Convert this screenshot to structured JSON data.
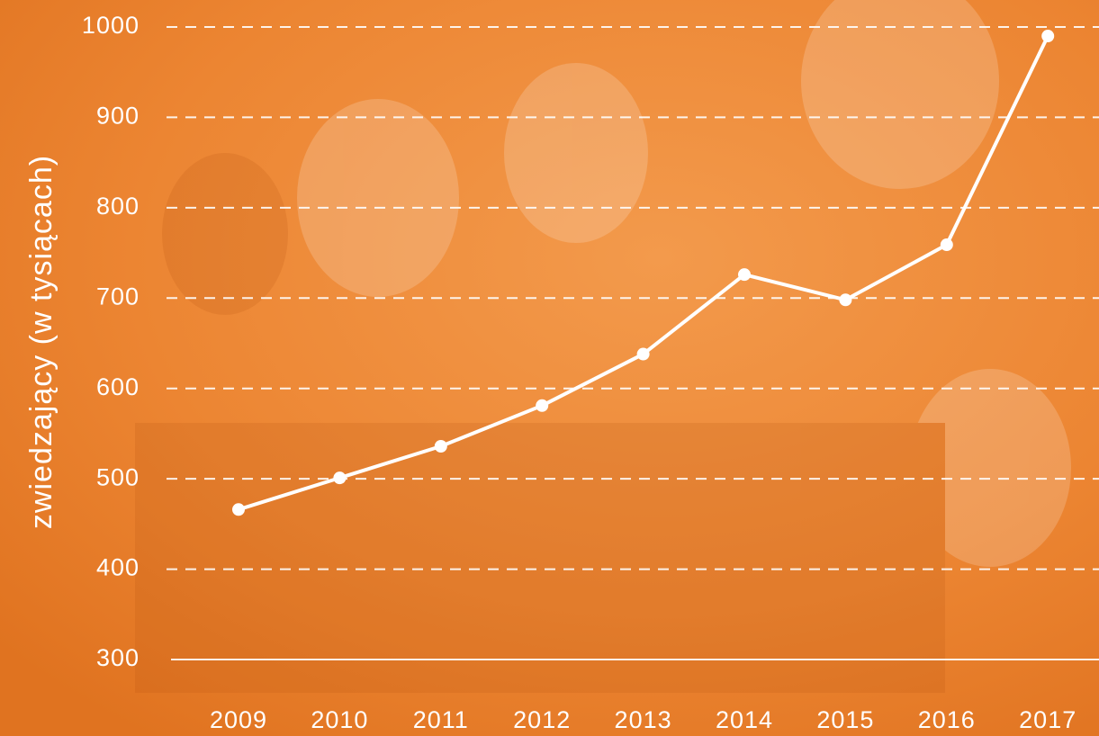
{
  "chart_data": {
    "type": "line",
    "y_axis_label": "zwiedzający (w tysiącach)",
    "categories": [
      "2009",
      "2010",
      "2011",
      "2012",
      "2013",
      "2014",
      "2015",
      "2016",
      "2017"
    ],
    "series": [
      {
        "name": "zwiedzający",
        "color": "#ffffff",
        "values": [
          466,
          501,
          536,
          581,
          638,
          726,
          698,
          759,
          990
        ]
      }
    ],
    "ylim": [
      300,
      1000
    ],
    "yticks": [
      300,
      400,
      500,
      600,
      700,
      800,
      900,
      1000
    ],
    "grid": true
  }
}
